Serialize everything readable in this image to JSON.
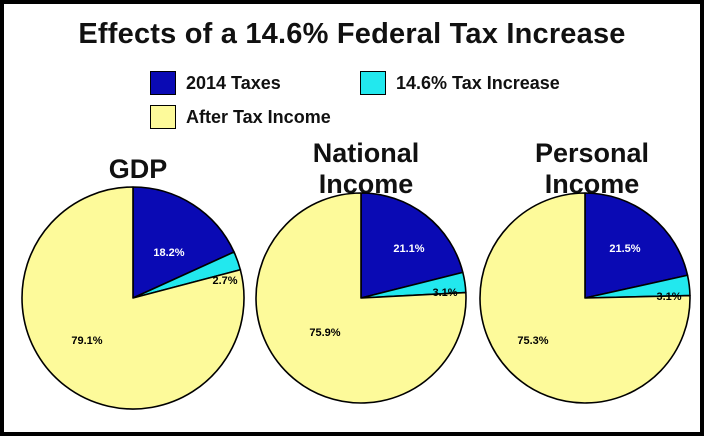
{
  "title": "Effects of a 14.6% Federal Tax Increase",
  "legend": [
    {
      "label": "2014 Taxes",
      "color": "#0a0ab4"
    },
    {
      "label": "14.6% Tax Increase",
      "color": "#22e8ee"
    },
    {
      "label": "After Tax Income",
      "color": "#fdfa9a"
    }
  ],
  "chart_data": [
    {
      "type": "pie",
      "title": [
        "GDP"
      ],
      "categories": [
        "2014 Taxes",
        "14.6% Tax Increase",
        "After Tax Income"
      ],
      "values": [
        18.2,
        2.7,
        79.1
      ],
      "labels": [
        "18.2%",
        "2.7%",
        "79.1%"
      ]
    },
    {
      "type": "pie",
      "title": [
        "National",
        "Income"
      ],
      "categories": [
        "2014 Taxes",
        "14.6% Tax Increase",
        "After Tax Income"
      ],
      "values": [
        21.1,
        3.1,
        75.9
      ],
      "labels": [
        "21.1%",
        "3.1%",
        "75.9%"
      ]
    },
    {
      "type": "pie",
      "title": [
        "Personal",
        "Income"
      ],
      "categories": [
        "2014 Taxes",
        "14.6% Tax Increase",
        "After Tax Income"
      ],
      "values": [
        21.5,
        3.1,
        75.3
      ],
      "labels": [
        "21.5%",
        "3.1%",
        "75.3%"
      ]
    }
  ]
}
